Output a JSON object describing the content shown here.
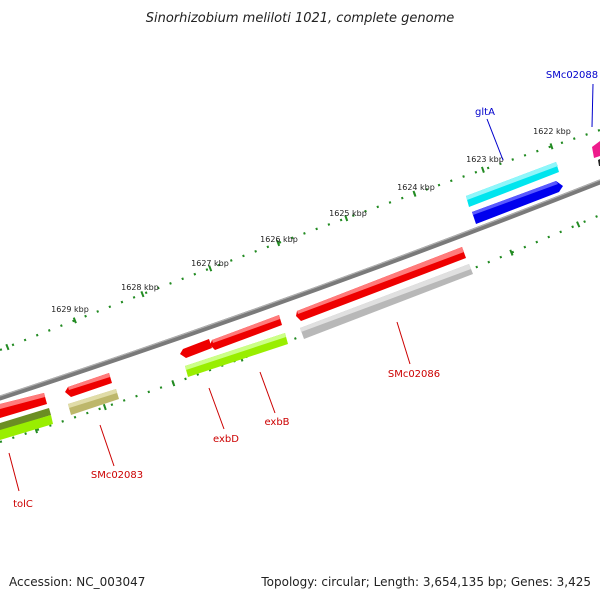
{
  "title": "Sinorhizobium meliloti 1021, complete genome",
  "footer": {
    "accession": "Accession: NC_003047",
    "summary": "Topology: circular; Length: 3,654,135 bp; Genes: 3,425"
  },
  "ruler_labels": [
    "1622 kbp",
    "1623 kbp",
    "1624 kbp",
    "1625 kbp",
    "1626 kbp",
    "1627 kbp",
    "1628 kbp",
    "1629 kbp"
  ],
  "genes": [
    {
      "name": "SMc02088",
      "strand": "forward",
      "color": "#ee1c8c"
    },
    {
      "name": "gltA",
      "strand": "forward",
      "color": "#00e5ee"
    },
    {
      "name": "SMc02086",
      "strand": "reverse",
      "color": "#ee0000"
    },
    {
      "name": "exbB",
      "strand": "reverse",
      "color": "#ee0000"
    },
    {
      "name": "exbD",
      "strand": "reverse",
      "color": "#ee0000"
    },
    {
      "name": "SMc02083",
      "strand": "reverse",
      "color": "#ee0000"
    },
    {
      "name": "tolC",
      "strand": "reverse",
      "color": "#ee0000"
    }
  ],
  "colors": {
    "forward_label": "#0000cc",
    "reverse_label": "#cc0000",
    "backbone": "#808080",
    "ticks": "#228b22"
  }
}
